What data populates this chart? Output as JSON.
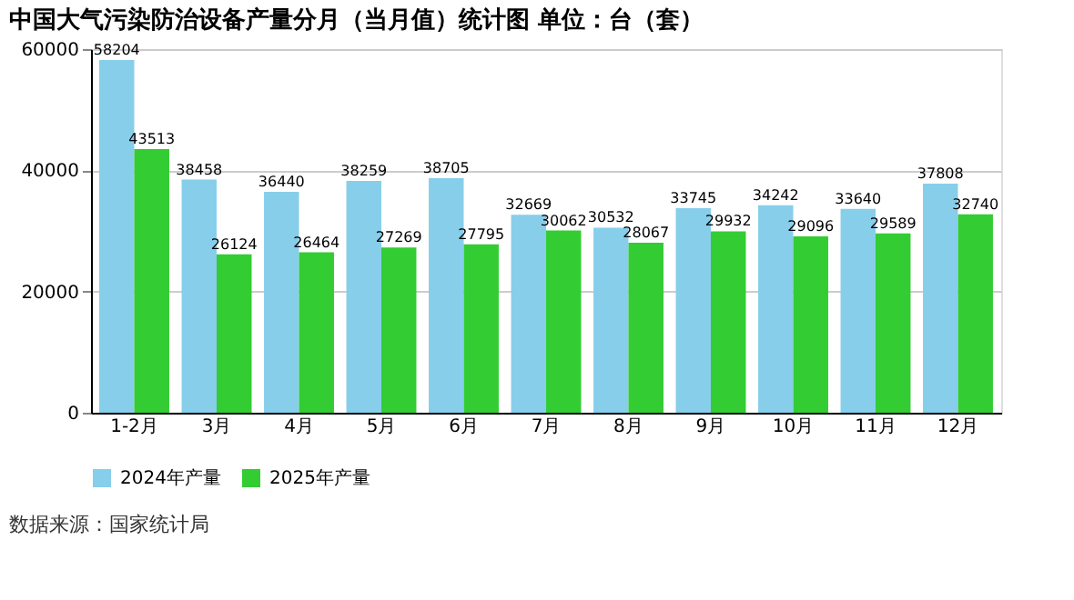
{
  "chart_data": {
    "type": "bar",
    "title": "中国大气污染防治设备产量分月（当月值）统计图 单位：台（套）",
    "categories": [
      "1-2月",
      "3月",
      "4月",
      "5月",
      "6月",
      "7月",
      "8月",
      "9月",
      "10月",
      "11月",
      "12月"
    ],
    "series": [
      {
        "name": "2024年产量",
        "color": "#87ceeb",
        "values": [
          58204,
          38458,
          36440,
          38259,
          38705,
          32669,
          30532,
          33745,
          34242,
          33640,
          37808
        ]
      },
      {
        "name": "2025年产量",
        "color": "#33cc33",
        "values": [
          43513,
          26124,
          26464,
          27269,
          27795,
          30062,
          28067,
          29932,
          29096,
          29589,
          32740
        ]
      }
    ],
    "ylim": [
      0,
      60000
    ],
    "yticks": [
      0,
      20000,
      40000,
      60000
    ],
    "grid": "y",
    "legend": "bottom",
    "data_labels": true,
    "annotations": [
      "数据来源：国家统计局"
    ]
  }
}
